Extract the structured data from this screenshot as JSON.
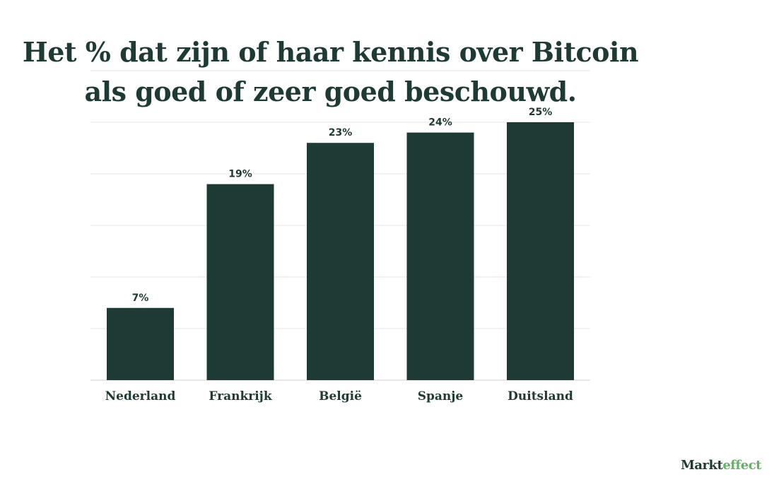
{
  "chart_data": {
    "type": "bar",
    "title_lines": [
      "Het % dat zijn of haar kennis over Bitcoin",
      "als goed of zeer goed beschouwd."
    ],
    "categories": [
      "Nederland",
      "Frankrijk",
      "België",
      "Spanje",
      "Duitsland"
    ],
    "values": [
      7,
      19,
      23,
      24,
      25
    ],
    "value_labels": [
      "7%",
      "19%",
      "23%",
      "24%",
      "25%"
    ],
    "xlabel": "",
    "ylabel": "",
    "ylim": [
      0,
      30
    ],
    "grid": true,
    "bar_color": "#1e3a34",
    "grid_color": "#e6e6e6"
  },
  "brand": {
    "part1": "Markt",
    "part2": "effect",
    "color_main": "#1e3a34",
    "color_accent": "#5cb85c"
  }
}
